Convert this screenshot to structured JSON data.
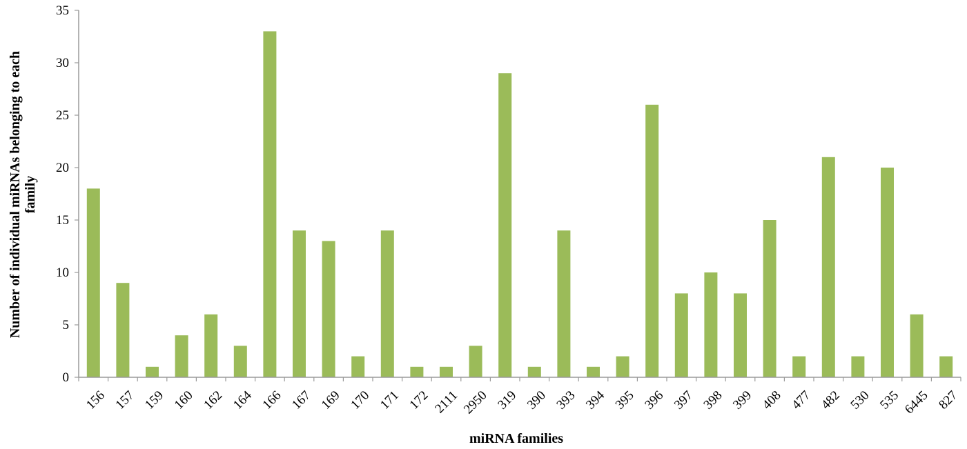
{
  "chart_data": {
    "type": "bar",
    "categories": [
      "156",
      "157",
      "159",
      "160",
      "162",
      "164",
      "166",
      "167",
      "169",
      "170",
      "171",
      "172",
      "2111",
      "2950",
      "319",
      "390",
      "393",
      "394",
      "395",
      "396",
      "397",
      "398",
      "399",
      "408",
      "477",
      "482",
      "530",
      "535",
      "6445",
      "827"
    ],
    "values": [
      18,
      9,
      1,
      4,
      6,
      3,
      33,
      14,
      13,
      2,
      14,
      1,
      1,
      3,
      29,
      1,
      14,
      1,
      2,
      26,
      8,
      10,
      8,
      15,
      2,
      21,
      2,
      20,
      6,
      2
    ],
    "xlabel": "miRNA families",
    "ylabel_lines": [
      "Number of individual miRNAs belonging to each",
      "family"
    ],
    "ylim": [
      0,
      35
    ],
    "yticks": [
      0,
      5,
      10,
      15,
      20,
      25,
      30,
      35
    ],
    "grid": false,
    "legend": "none",
    "bar_color": "#9bbb59"
  }
}
